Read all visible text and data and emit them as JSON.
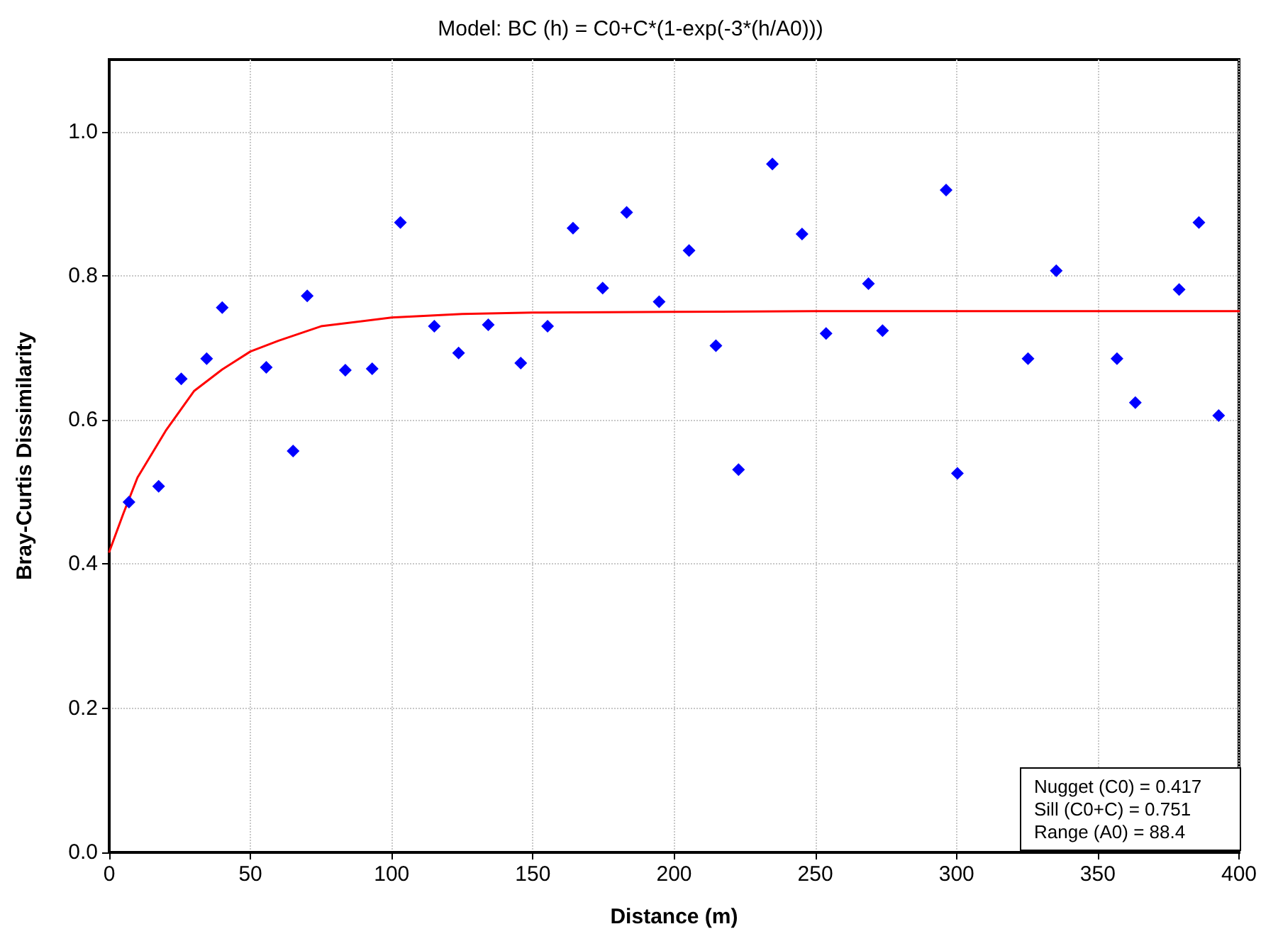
{
  "chart_data": {
    "type": "scatter",
    "title": "Model: BC (h) = C0+C*(1-exp(-3*(h/A0)))",
    "xlabel": "Distance (m)",
    "ylabel": "Bray-Curtis Dissimilarity",
    "annotations": [
      "Nugget (C0) = 0.417",
      "Sill (C0+C) = 0.751",
      "Range (A0) = 88.4"
    ],
    "series": [
      {
        "color": "#0000ff",
        "x": [
          7.0,
          17.5,
          25.5,
          34.5,
          40.0,
          55.6,
          65.1,
          70.1,
          83.6,
          93.1,
          103.1,
          115.1,
          123.7,
          134.2,
          145.7,
          155.2,
          164.2,
          174.7,
          183.2,
          194.7,
          205.3,
          214.8,
          222.8,
          234.8,
          245.3,
          253.8,
          268.8,
          273.8,
          296.3,
          300.3,
          325.3,
          335.3,
          356.8,
          363.3,
          378.8,
          385.8,
          392.8
        ],
        "values": [
          0.486,
          0.508,
          0.657,
          0.685,
          0.756,
          0.673,
          0.557,
          0.772,
          0.669,
          0.671,
          0.874,
          0.73,
          0.693,
          0.732,
          0.679,
          0.73,
          0.866,
          0.783,
          0.888,
          0.764,
          0.835,
          0.703,
          0.531,
          0.955,
          0.858,
          0.72,
          0.789,
          0.724,
          0.919,
          0.526,
          0.685,
          0.807,
          0.685,
          0.624,
          0.781,
          0.874,
          0.606
        ]
      },
      {
        "type": "line",
        "marker": "none",
        "color": "#ff0000",
        "x": [
          0,
          5,
          10,
          20,
          30,
          40,
          50,
          60,
          75,
          100,
          125,
          150,
          200,
          250,
          300,
          400
        ],
        "values": [
          0.417,
          0.47,
          0.52,
          0.585,
          0.64,
          0.67,
          0.695,
          0.71,
          0.73,
          0.742,
          0.747,
          0.749,
          0.75,
          0.751,
          0.751,
          0.751
        ]
      }
    ],
    "xlim": [
      0,
      400
    ],
    "xticks": [
      0,
      50,
      100,
      150,
      200,
      250,
      300,
      350,
      400
    ],
    "ylim": [
      0,
      1.1
    ],
    "yticks": [
      {
        "value": 0,
        "label": "0.0"
      },
      {
        "value": 0.2,
        "label": "0.2"
      },
      {
        "value": 0.4,
        "label": "0.4"
      },
      {
        "value": 0.6,
        "label": "0.6"
      },
      {
        "value": 0.8,
        "label": "0.8"
      },
      {
        "value": 1.0,
        "label": "1.0"
      }
    ],
    "grid": true,
    "marker": "diamond",
    "line_style": "solid"
  }
}
